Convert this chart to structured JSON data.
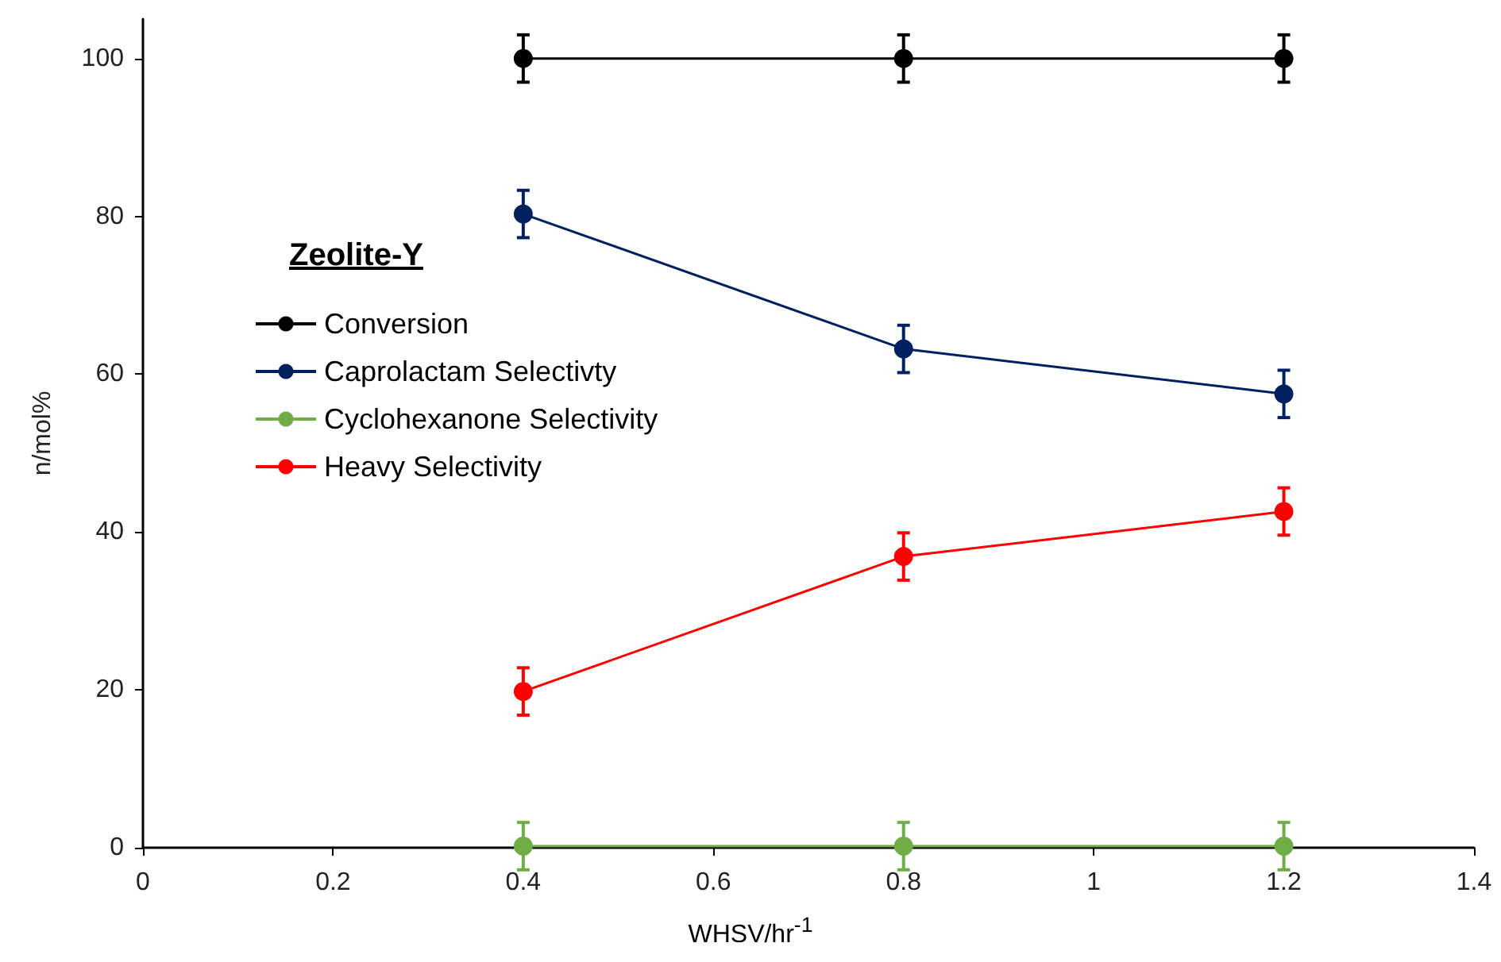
{
  "chart_data": {
    "type": "line",
    "xlabel": "WHSV/hr$^{-1}$",
    "ylabel": "n/mol%",
    "legend_title": "Zeolite-Y",
    "legend": "left",
    "marker": "circle",
    "grid": false,
    "x": [
      0.4,
      0.8,
      1.2
    ],
    "xlim": [
      0,
      1.4
    ],
    "xticks": [
      0,
      0.2,
      0.4,
      0.6,
      0.8,
      1,
      1.2,
      1.4
    ],
    "ylim": [
      0,
      105
    ],
    "yticks": [
      0,
      20,
      40,
      60,
      80,
      100
    ],
    "series": [
      {
        "name": "Conversion",
        "color": "#000000",
        "values": [
          100,
          100,
          100
        ],
        "errors": [
          3,
          3,
          3
        ]
      },
      {
        "name": "Caprolactam Selectivty",
        "color": "#002060",
        "values": [
          80.3,
          63.2,
          57.5
        ],
        "errors": [
          3,
          3,
          3
        ]
      },
      {
        "name": "Cyclohexanone Selectivity",
        "color": "#70ad47",
        "values": [
          0.2,
          0.2,
          0.2
        ],
        "errors": [
          3,
          3,
          3
        ]
      },
      {
        "name": "Heavy Selectivity",
        "color": "#ff0000",
        "values": [
          19.8,
          36.9,
          42.6
        ],
        "errors": [
          3,
          3,
          3
        ]
      }
    ]
  }
}
